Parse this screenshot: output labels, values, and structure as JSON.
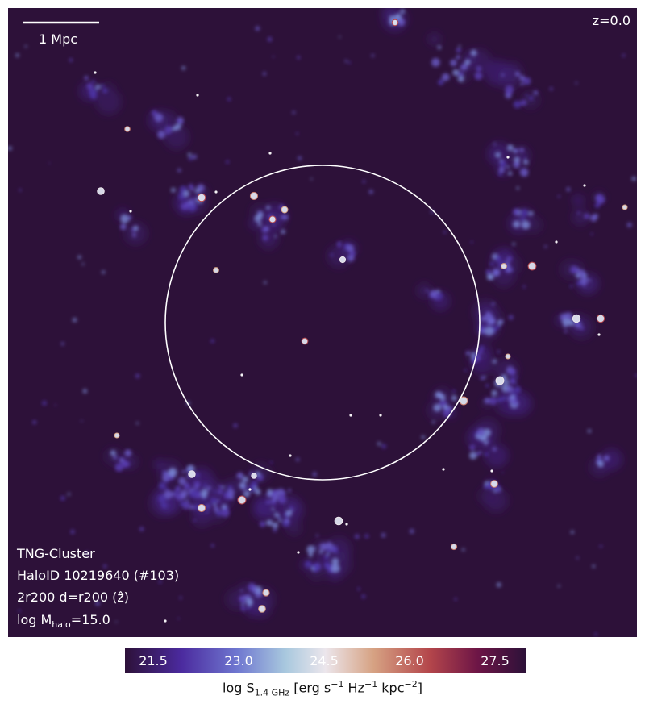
{
  "figure": {
    "scale_bar_label": "1 Mpc",
    "redshift_label": "z=0.0",
    "info_lines": {
      "simulation": "TNG-Cluster",
      "halo": "HaloID 10219640 (#103)",
      "projection": "2r200 d=r200 (ẑ)",
      "mass_prefix": "log M",
      "mass_sub": "halo",
      "mass_suffix": "=15.0"
    },
    "colors": {
      "background": "#2d1139",
      "circle": "#ffffff",
      "colormap": [
        "#2d1139",
        "#4b2a9e",
        "#6f77d0",
        "#a8c8de",
        "#ece6ec",
        "#d6a283",
        "#b4464b",
        "#6d1546",
        "#2d1139"
      ]
    }
  },
  "colorbar": {
    "ticks": [
      "21.5",
      "23.0",
      "24.5",
      "26.0",
      "27.5"
    ],
    "label_prefix": "log S",
    "label_sub": "1.4 GHz",
    "label_main": " [erg s",
    "exp1": "−1",
    "mid1": " Hz",
    "exp2": "−1",
    "mid2": " kpc",
    "exp3": "−2",
    "label_end": "]"
  }
}
